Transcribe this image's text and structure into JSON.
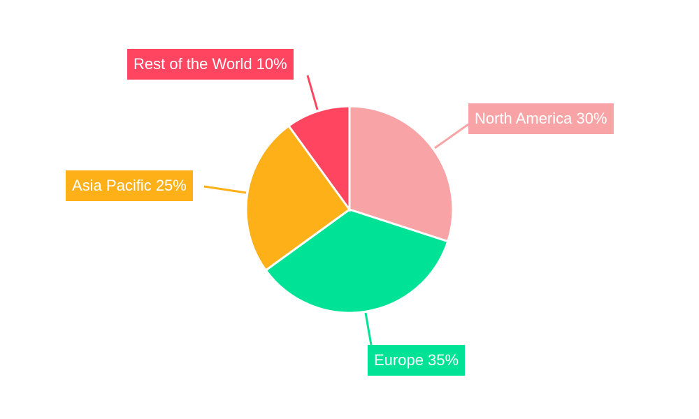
{
  "chart_data": {
    "type": "pie",
    "categories": [
      "North America",
      "Europe",
      "Asia Pacific",
      "Rest of the World"
    ],
    "values": [
      30,
      35,
      25,
      10
    ],
    "unit": "%",
    "colors": [
      "#f8a4a6",
      "#00e396",
      "#feb019",
      "#ff4560"
    ],
    "labels": [
      "North America 30%",
      "Europe 35%",
      "Asia Pacific 25%",
      "Rest of the World 10%"
    ],
    "start_angle": "top, clockwise",
    "legend": "none"
  }
}
